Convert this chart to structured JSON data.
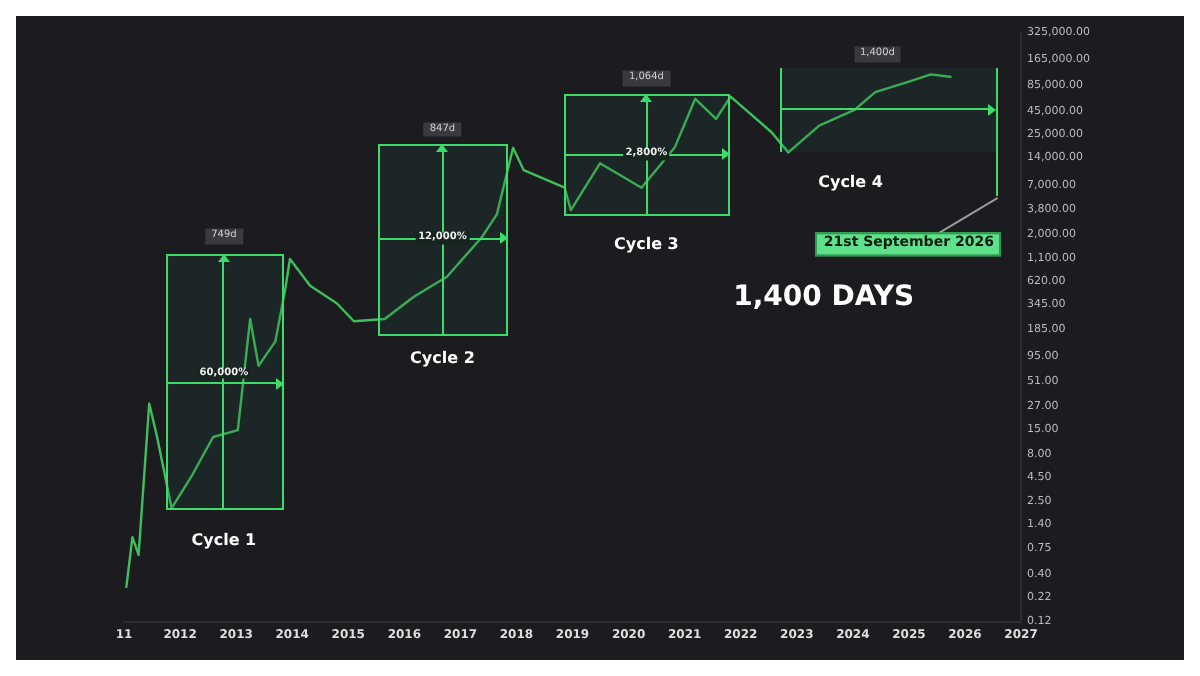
{
  "chart_data": {
    "type": "line",
    "log": "y",
    "grid": false,
    "xlim": [
      2011,
      2027
    ],
    "ylim": [
      0.12,
      325000
    ],
    "xticks": [
      {
        "value": 2011,
        "label": "11"
      },
      2012,
      2013,
      2014,
      2015,
      2016,
      2017,
      2018,
      2019,
      2020,
      2021,
      2022,
      2023,
      2024,
      2025,
      2026,
      2027
    ],
    "yticks": [
      {
        "value": 0.12,
        "label": "0.12"
      },
      {
        "value": 0.22,
        "label": "0.22"
      },
      {
        "value": 0.4,
        "label": "0.40"
      },
      {
        "value": 0.75,
        "label": "0.75"
      },
      {
        "value": 1.4,
        "label": "1.40"
      },
      {
        "value": 2.5,
        "label": "2.50"
      },
      {
        "value": 4.5,
        "label": "4.50"
      },
      {
        "value": 8,
        "label": "8.00"
      },
      {
        "value": 15,
        "label": "15.00"
      },
      {
        "value": 27,
        "label": "27.00"
      },
      {
        "value": 51,
        "label": "51.00"
      },
      {
        "value": 95,
        "label": "95.00"
      },
      {
        "value": 185,
        "label": "185.00"
      },
      {
        "value": 345,
        "label": "345.00"
      },
      {
        "value": 620,
        "label": "620.00"
      },
      {
        "value": 1100,
        "label": "1,100.00"
      },
      {
        "value": 2000,
        "label": "2,000.00"
      },
      {
        "value": 3800,
        "label": "3,800.00"
      },
      {
        "value": 7000,
        "label": "7,000.00"
      },
      {
        "value": 14000,
        "label": "14,000.00"
      },
      {
        "value": 25000,
        "label": "25,000.00"
      },
      {
        "value": 45000,
        "label": "45,000.00"
      },
      {
        "value": 85000,
        "label": "85,000.00"
      },
      {
        "value": 165000,
        "label": "165,000.00"
      },
      {
        "value": 325000,
        "label": "325,000.00"
      }
    ],
    "series": [
      {
        "color": "#3fbf5a",
        "x": [
          2011.04,
          2011.15,
          2011.26,
          2011.45,
          2011.59,
          2011.85,
          2012.22,
          2012.59,
          2013.03,
          2013.25,
          2013.4,
          2013.7,
          2013.88,
          2013.96,
          2014.32,
          2014.8,
          2015.1,
          2015.65,
          2016.17,
          2016.76,
          2017.39,
          2017.65,
          2017.94,
          2018.13,
          2018.86,
          2018.97,
          2019.49,
          2020.23,
          2020.82,
          2021.19,
          2021.56,
          2021.82,
          2022.55,
          2022.85,
          2023.4,
          2024.03,
          2024.4,
          2025.03,
          2025.39,
          2025.76
        ],
        "values": [
          0.28,
          1.0,
          0.64,
          28.7,
          12.4,
          2.07,
          4.8,
          12.4,
          14.7,
          240,
          74,
          137,
          525,
          1085,
          555,
          355,
          227,
          240,
          420,
          693,
          1900,
          3320,
          17700,
          10100,
          6500,
          3700,
          12000,
          6500,
          17700,
          60700,
          36600,
          64100,
          26200,
          15800,
          31000,
          45900,
          71800,
          94800,
          112000,
          105000
        ]
      }
    ],
    "annotations": [
      "749d",
      "60,000%",
      "Cycle 1",
      "847d",
      "12,000%",
      "Cycle 2",
      "1,064d",
      "2,800%",
      "Cycle 3",
      "1,400d",
      "Cycle 4",
      "21st September 2026",
      "1,400 DAYS"
    ]
  }
}
